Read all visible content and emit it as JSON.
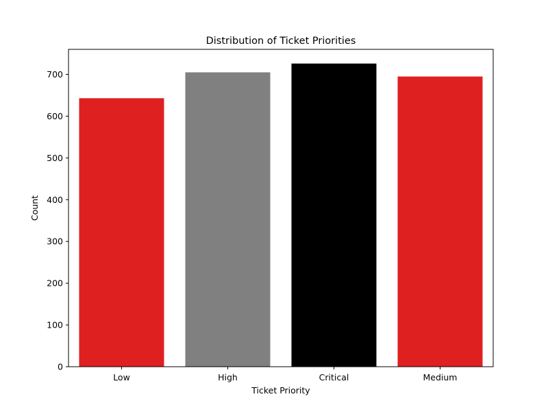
{
  "chart_data": {
    "type": "bar",
    "title": "Distribution of Ticket Priorities",
    "xlabel": "Ticket Priority",
    "ylabel": "Count",
    "categories": [
      "Low",
      "High",
      "Critical",
      "Medium"
    ],
    "values": [
      643,
      705,
      726,
      695
    ],
    "colors": [
      "#df2020",
      "#808080",
      "#000000",
      "#df2020"
    ],
    "ylim": [
      0,
      760
    ],
    "yticks": [
      0,
      100,
      200,
      300,
      400,
      500,
      600,
      700
    ],
    "grid": false,
    "legend": "none"
  }
}
